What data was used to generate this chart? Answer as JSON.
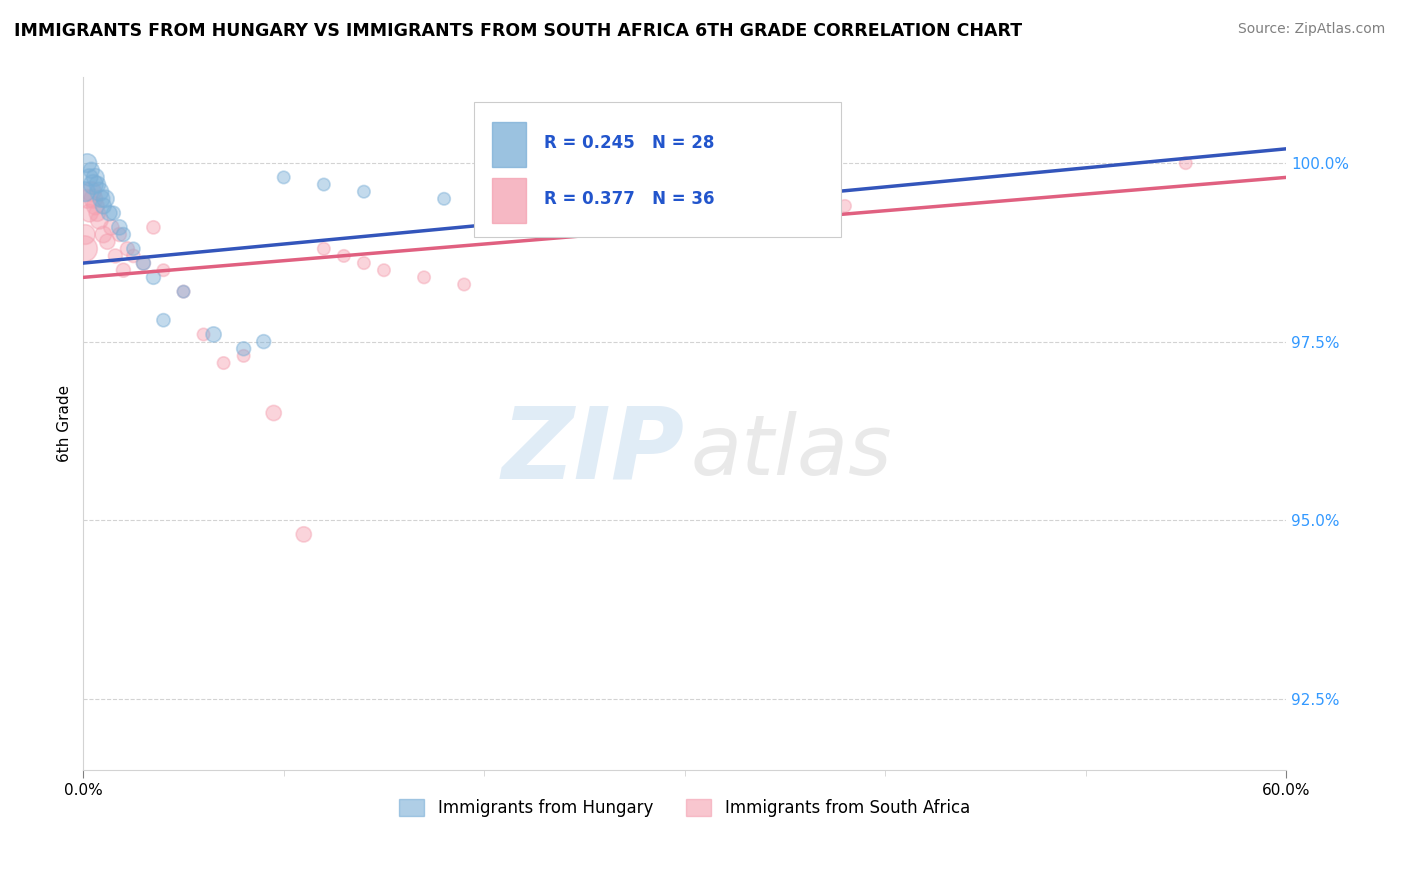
{
  "title": "IMMIGRANTS FROM HUNGARY VS IMMIGRANTS FROM SOUTH AFRICA 6TH GRADE CORRELATION CHART",
  "source": "Source: ZipAtlas.com",
  "legend_hungary": "Immigrants from Hungary",
  "legend_south_africa": "Immigrants from South Africa",
  "R_hungary": 0.245,
  "N_hungary": 28,
  "R_south_africa": 0.377,
  "N_south_africa": 36,
  "color_hungary": "#7aaed6",
  "color_south_africa": "#f4a0b0",
  "hungary_x": [
    0.1,
    0.2,
    0.3,
    0.4,
    0.5,
    0.6,
    0.7,
    0.8,
    0.9,
    1.0,
    1.1,
    1.3,
    1.5,
    1.8,
    2.0,
    2.5,
    3.0,
    3.5,
    4.0,
    5.0,
    6.5,
    8.0,
    9.0,
    10.0,
    12.0,
    14.0,
    18.0,
    29.0
  ],
  "hungary_y": [
    99.6,
    100.0,
    99.8,
    99.9,
    99.7,
    99.8,
    99.7,
    99.6,
    99.5,
    99.4,
    99.5,
    99.3,
    99.3,
    99.1,
    99.0,
    98.8,
    98.6,
    98.4,
    97.8,
    98.2,
    97.6,
    97.4,
    97.5,
    99.8,
    99.7,
    99.6,
    99.5,
    100.0
  ],
  "hungary_sizes": [
    200,
    180,
    150,
    130,
    200,
    160,
    140,
    180,
    150,
    130,
    160,
    120,
    100,
    120,
    100,
    90,
    100,
    100,
    90,
    80,
    120,
    100,
    100,
    80,
    80,
    80,
    80,
    80
  ],
  "south_africa_x": [
    0.05,
    0.1,
    0.2,
    0.3,
    0.4,
    0.5,
    0.6,
    0.7,
    0.8,
    1.0,
    1.2,
    1.4,
    1.6,
    1.8,
    2.0,
    2.2,
    2.5,
    3.0,
    3.5,
    4.0,
    5.0,
    6.0,
    7.0,
    8.0,
    9.5,
    11.0,
    12.0,
    13.0,
    14.0,
    15.0,
    17.0,
    19.0,
    22.0,
    28.0,
    38.0,
    55.0
  ],
  "south_africa_y": [
    98.8,
    99.0,
    99.5,
    99.3,
    99.6,
    99.5,
    99.4,
    99.3,
    99.2,
    99.0,
    98.9,
    99.1,
    98.7,
    99.0,
    98.5,
    98.8,
    98.7,
    98.6,
    99.1,
    98.5,
    98.2,
    97.6,
    97.2,
    97.3,
    96.5,
    94.8,
    98.8,
    98.7,
    98.6,
    98.5,
    98.4,
    98.3,
    99.6,
    99.5,
    99.4,
    100.0
  ],
  "south_africa_sizes": [
    350,
    200,
    180,
    160,
    200,
    180,
    160,
    140,
    160,
    140,
    120,
    120,
    100,
    100,
    100,
    100,
    90,
    100,
    90,
    80,
    80,
    80,
    80,
    80,
    120,
    120,
    80,
    80,
    80,
    80,
    80,
    80,
    80,
    80,
    80,
    80
  ],
  "xlim": [
    0,
    60
  ],
  "ylim": [
    91.5,
    101.2
  ],
  "yticks": [
    92.5,
    95.0,
    97.5,
    100.0
  ],
  "trend_line_start_x": 0,
  "trend_line_end_x": 60,
  "hungary_trend_y0": 98.6,
  "hungary_trend_y1": 100.2,
  "south_africa_trend_y0": 98.4,
  "south_africa_trend_y1": 99.8,
  "watermark_zip": "ZIP",
  "watermark_atlas": "atlas",
  "background_color": "#ffffff"
}
